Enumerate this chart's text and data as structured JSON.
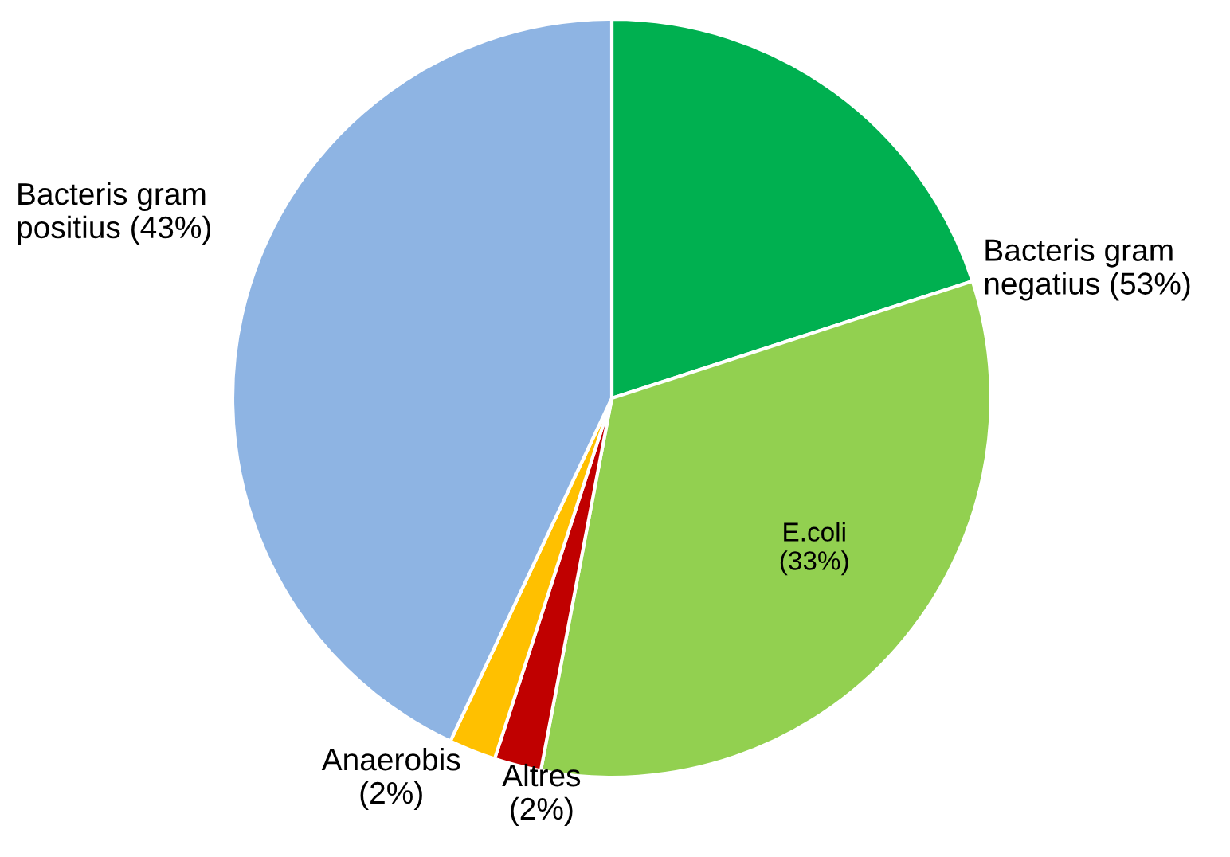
{
  "chart_data": {
    "type": "pie",
    "categories": [
      null,
      "E.coli\n(33%)",
      "Altres\n(2%)",
      "Anaerobis\n(2%)",
      "Bacteris gram\npositius (43%)"
    ],
    "values": [
      20,
      33,
      2,
      2,
      43
    ],
    "colors": [
      "#00b050",
      "#92d050",
      "#c00000",
      "#ffc000",
      "#8eb4e3"
    ],
    "annotations": [
      "Bacteris gram\nnegatius (53%)"
    ],
    "legend": false
  }
}
